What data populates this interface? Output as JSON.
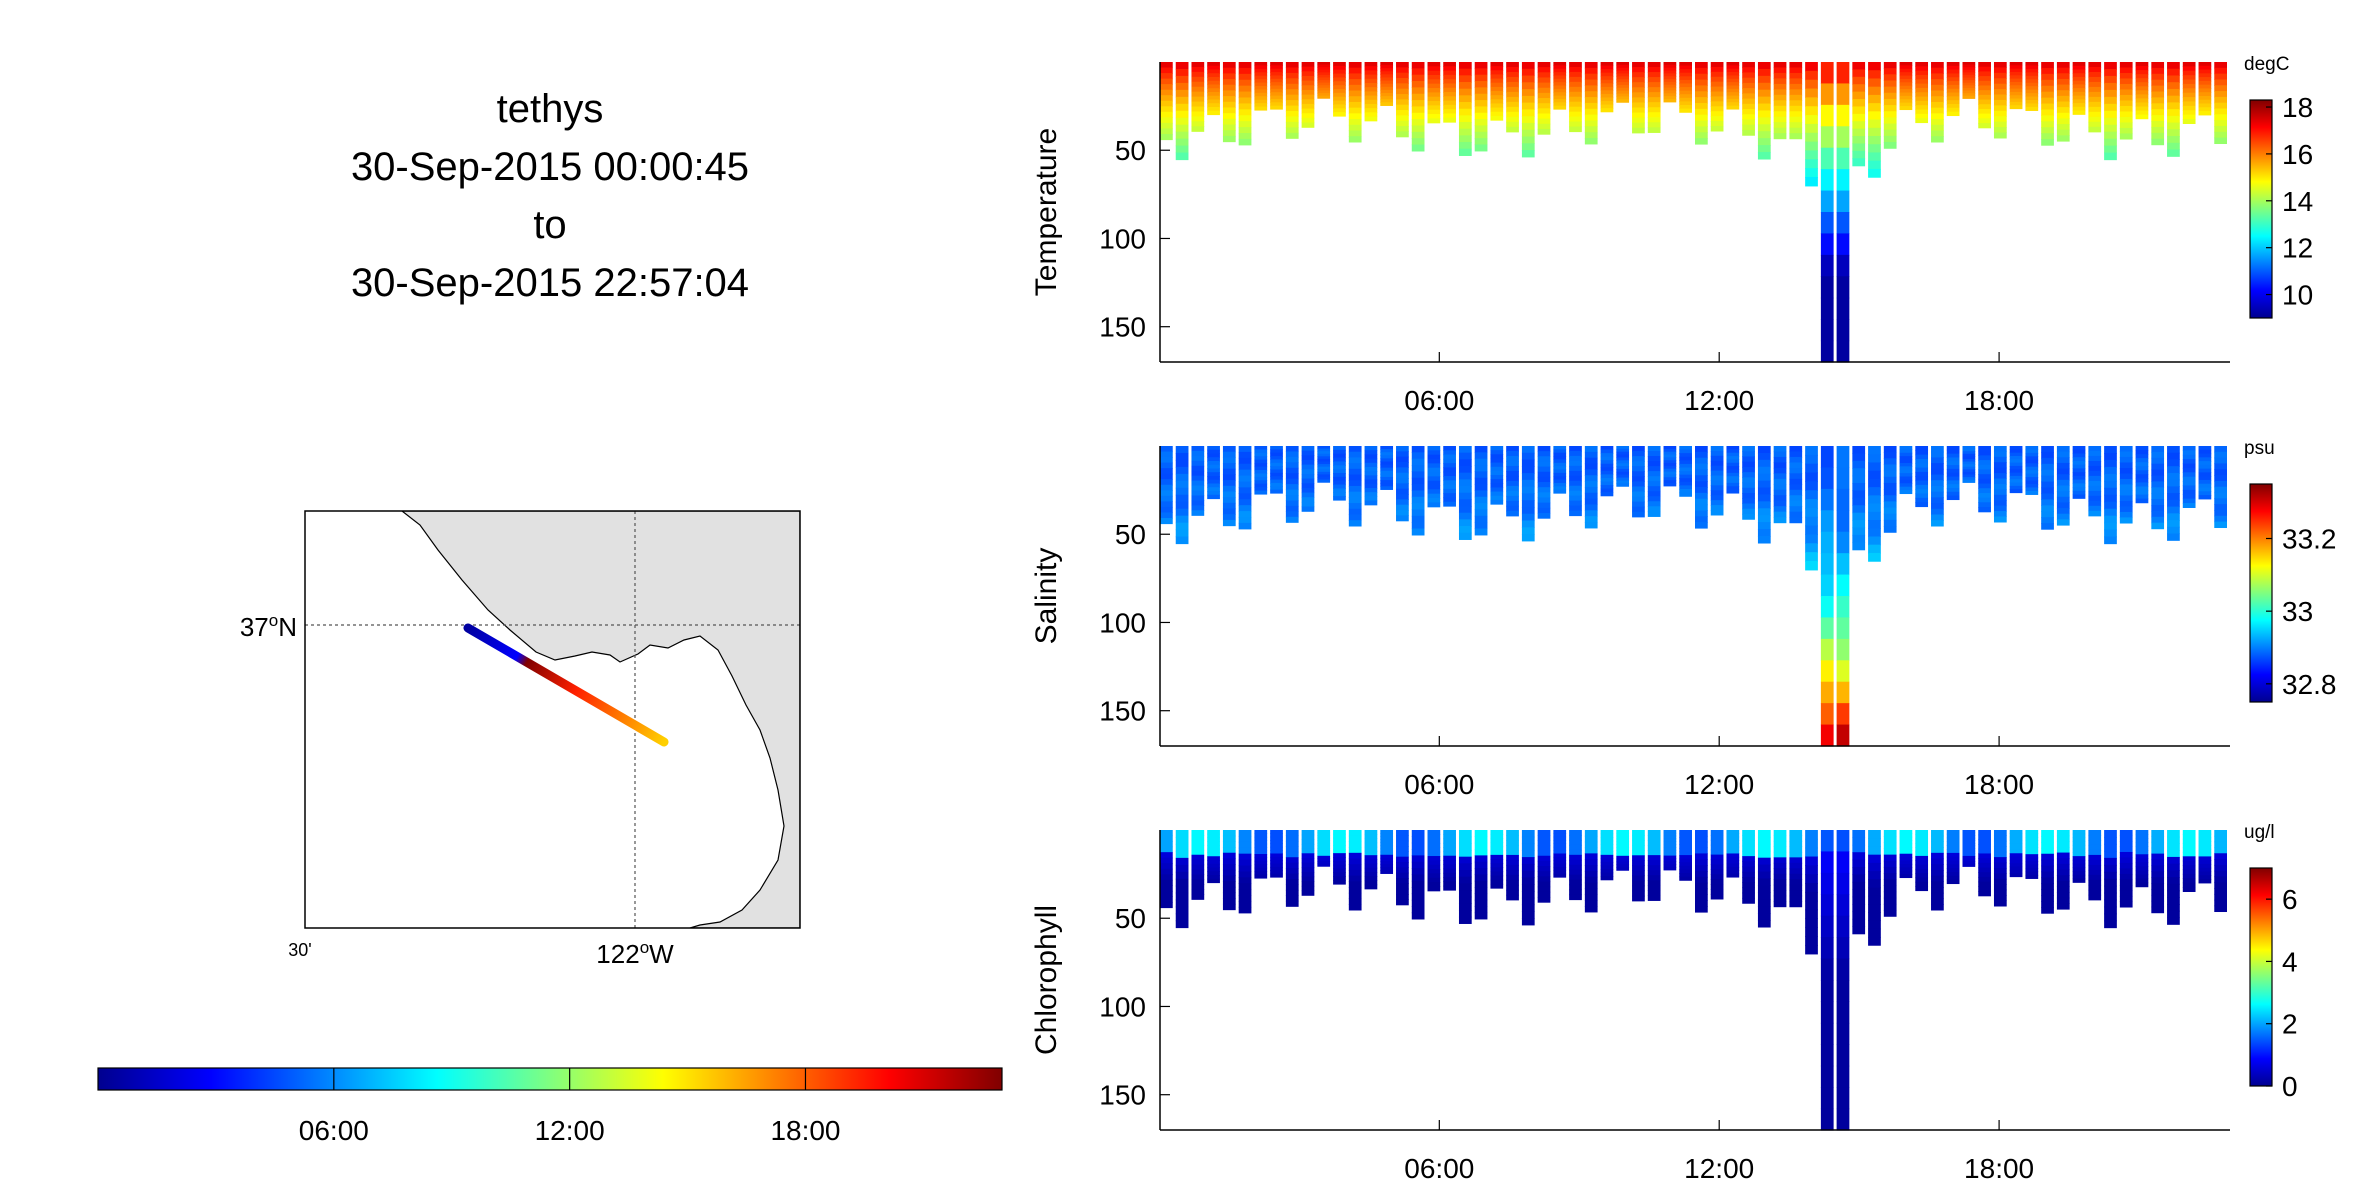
{
  "header": {
    "vehicle": "tethys",
    "start_time": "30-Sep-2015 00:00:45",
    "to_label": "to",
    "end_time": "30-Sep-2015 22:57:04"
  },
  "map": {
    "lat_label": "37",
    "lat_sup": "o",
    "lat_suffix": "N",
    "lon_label": "122",
    "lon_sup": "o",
    "lon_suffix": "W",
    "lon_minor_label": "30'",
    "land_color": "#e1e1e1",
    "track_color_by": "time"
  },
  "time_colorbar": {
    "ticks": [
      "06:00",
      "12:00",
      "18:00"
    ],
    "colormap": "jet"
  },
  "chart_data": [
    {
      "type": "scatter",
      "title": "",
      "ylabel": "Temperature",
      "unit": "degC",
      "x_ticks": [
        "06:00",
        "12:00",
        "18:00"
      ],
      "y_ticks": [
        50,
        100,
        150
      ],
      "ylim": [
        170,
        0
      ],
      "color_ticks": [
        10,
        12,
        14,
        16,
        18
      ],
      "color_range": [
        9,
        18.3
      ],
      "surface_value": 17.6,
      "deep_value": 9.3,
      "profiles": "yo-yo depth profiles every ~20 min, ~40 m deep; deep dives to ~170 m near 14:30"
    },
    {
      "type": "scatter",
      "title": "",
      "ylabel": "Salinity",
      "unit": "psu",
      "x_ticks": [
        "06:00",
        "12:00",
        "18:00"
      ],
      "y_ticks": [
        50,
        100,
        150
      ],
      "ylim": [
        170,
        0
      ],
      "color_ticks": [
        32.8,
        33,
        33.2
      ],
      "color_range": [
        32.75,
        33.35
      ],
      "surface_value": 32.88,
      "deep_value": 33.33
    },
    {
      "type": "scatter",
      "title": "",
      "ylabel": "Chlorophyll",
      "unit": "ug/l",
      "x_ticks": [
        "06:00",
        "12:00",
        "18:00"
      ],
      "y_ticks": [
        50,
        100,
        150
      ],
      "ylim": [
        170,
        0
      ],
      "color_ticks": [
        0,
        2,
        4,
        6
      ],
      "color_range": [
        0,
        7
      ],
      "surface_value": 2.0,
      "deep_value": 0.2
    }
  ]
}
